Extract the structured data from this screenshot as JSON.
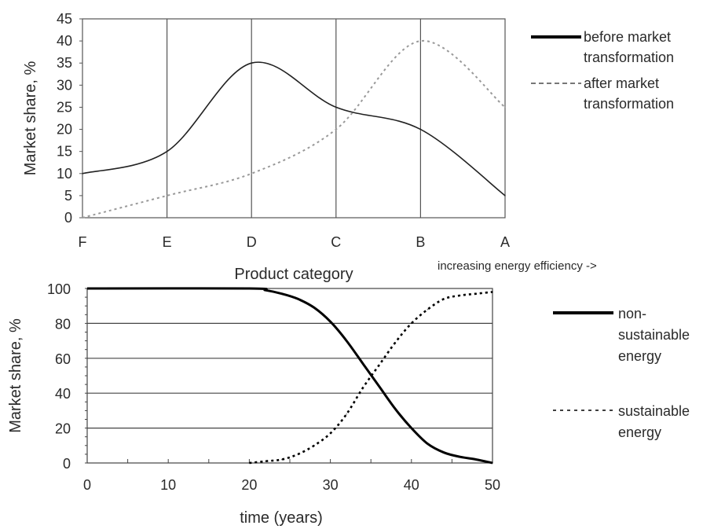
{
  "chart_data": [
    {
      "type": "line",
      "xlabel": "Product category",
      "ylabel": "Market share, %",
      "annotation": "increasing energy efficiency ->",
      "categories": [
        "F",
        "E",
        "D",
        "C",
        "B",
        "A"
      ],
      "ylim": [
        0,
        45
      ],
      "yticks": [
        0,
        5,
        10,
        15,
        20,
        25,
        30,
        35,
        40,
        45
      ],
      "grid": "vertical lines at categories",
      "legend_position": "right",
      "series": [
        {
          "name_lines": [
            "before market",
            "transformation"
          ],
          "style": "solid",
          "color": "#222222",
          "values": [
            10,
            15,
            35,
            25,
            20,
            5
          ]
        },
        {
          "name_lines": [
            "after market",
            "transformation"
          ],
          "style": "dotted",
          "color": "#999999",
          "values": [
            0,
            5,
            10,
            20,
            40,
            25
          ]
        }
      ]
    },
    {
      "type": "line",
      "xlabel": "time (years)",
      "ylabel": "Market share, %",
      "xlim": [
        0,
        50
      ],
      "xticks": [
        0,
        10,
        20,
        30,
        40,
        50
      ],
      "ylim": [
        0,
        100
      ],
      "yticks": [
        0,
        20,
        40,
        60,
        80,
        100
      ],
      "grid": "horizontal lines",
      "legend_position": "right",
      "series": [
        {
          "name_lines": [
            "non-",
            "sustainable",
            "energy"
          ],
          "style": "solid-thick",
          "color": "#000000",
          "x": [
            0,
            20,
            22,
            24,
            26,
            28,
            30,
            32,
            34,
            36,
            38,
            40,
            42,
            44,
            46,
            48,
            50
          ],
          "y": [
            100,
            100,
            99,
            97,
            94,
            89,
            81,
            70,
            57,
            44,
            31,
            20,
            11,
            6,
            3.5,
            2,
            0
          ]
        },
        {
          "name_lines": [
            "sustainable",
            "energy"
          ],
          "style": "dotted-thick",
          "color": "#000000",
          "x": [
            20,
            22,
            24,
            26,
            28,
            30,
            32,
            34,
            36,
            38,
            40,
            42,
            44,
            46,
            48,
            50
          ],
          "y": [
            0,
            1,
            2,
            5,
            10,
            17,
            28,
            43,
            56,
            69,
            80,
            88,
            94,
            96,
            97,
            98
          ]
        }
      ]
    }
  ]
}
